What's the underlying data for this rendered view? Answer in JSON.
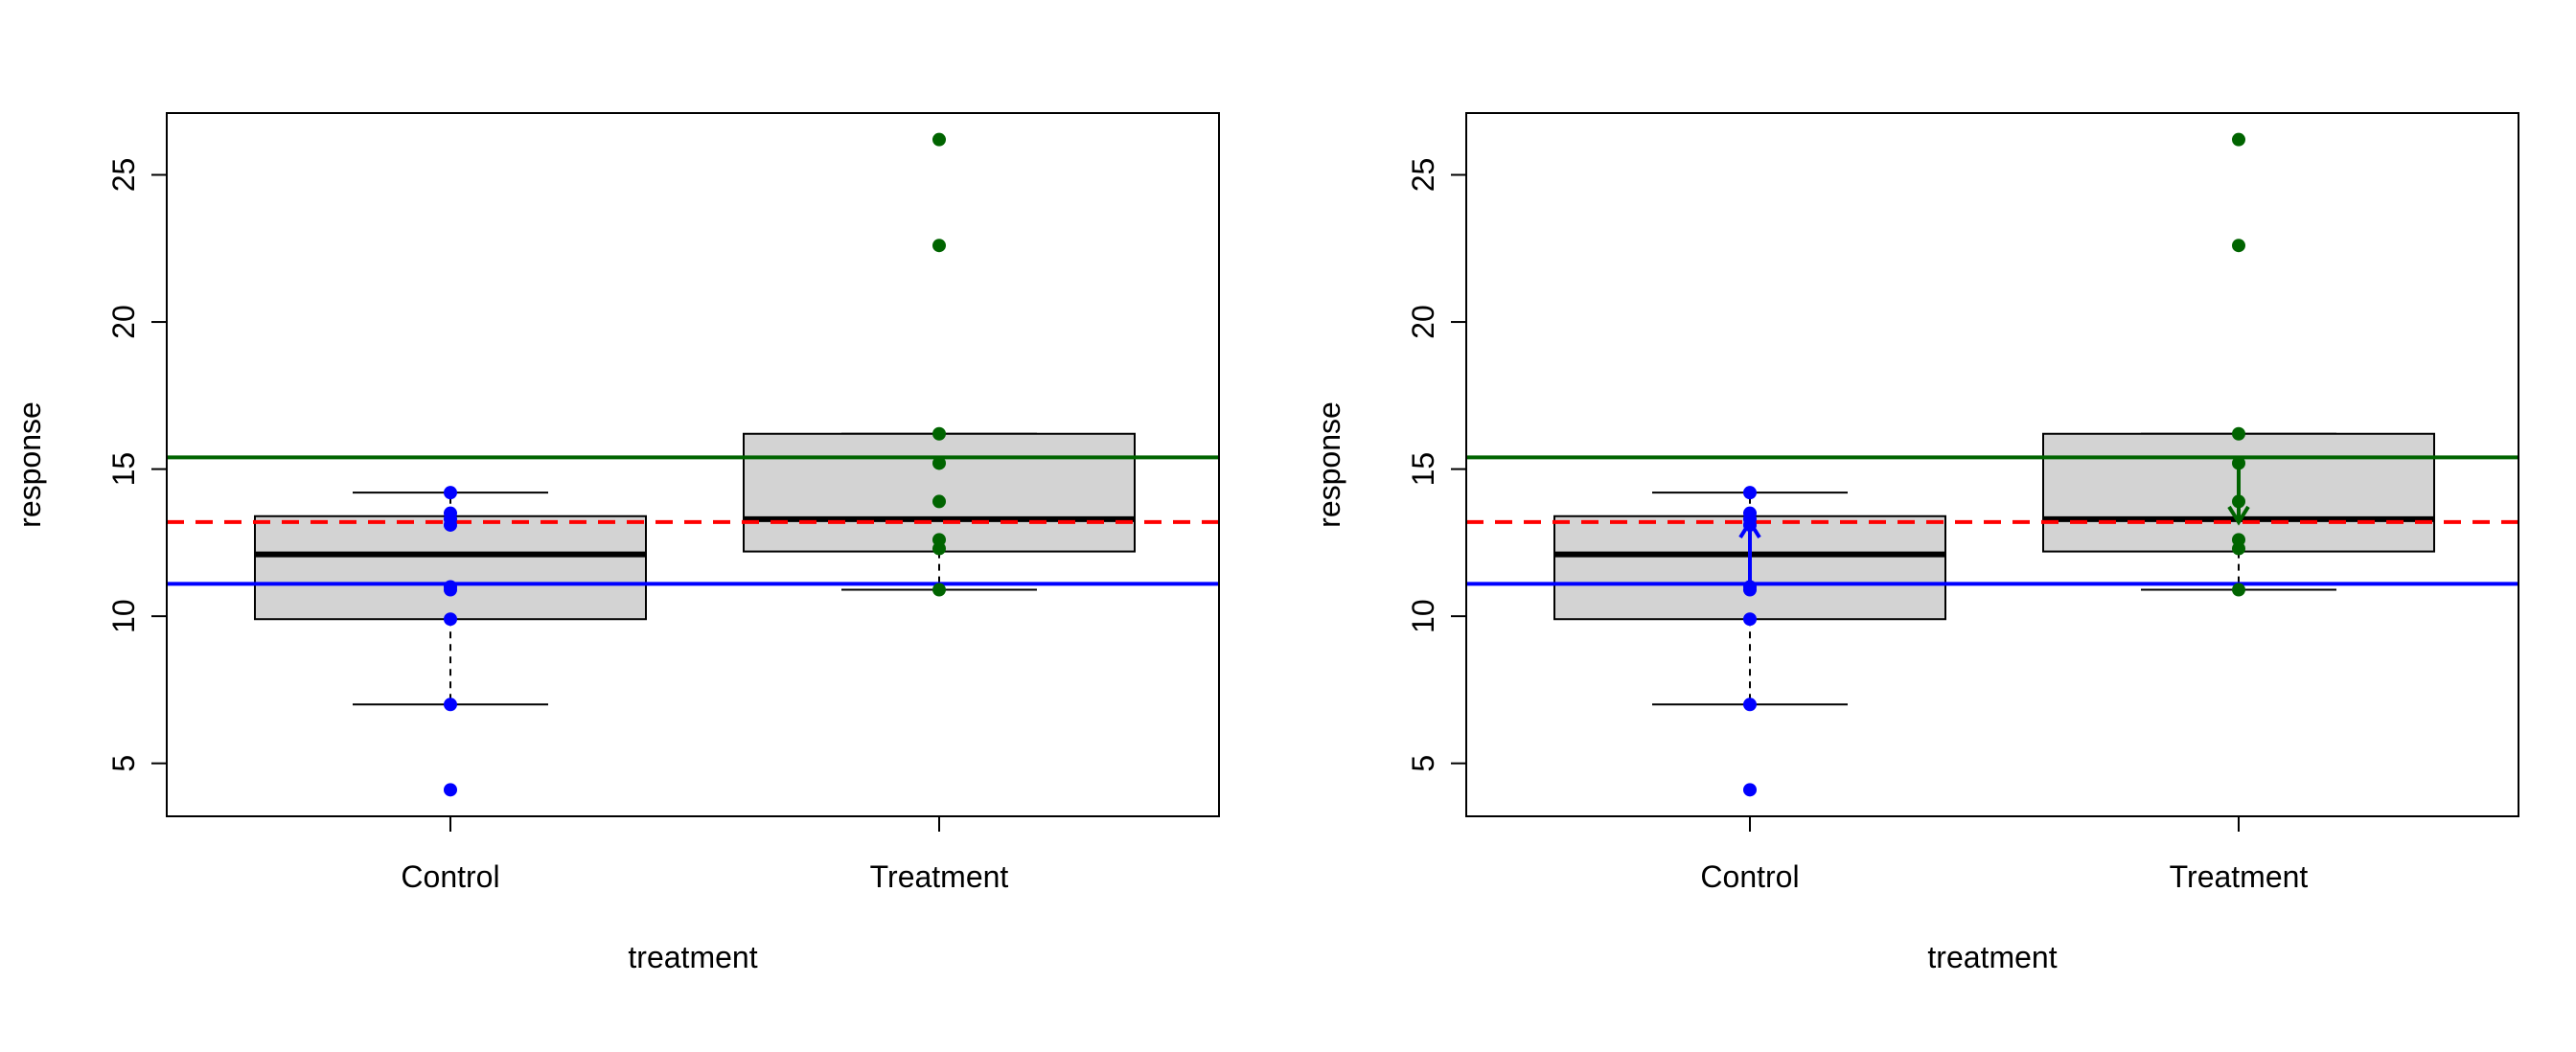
{
  "colors": {
    "control": "#0000ff",
    "treatment": "#006400",
    "grand_mean": "#ff0000",
    "box_fill": "#d3d3d3",
    "control_mean_line": "#0000ff",
    "treatment_mean_line": "#006400"
  },
  "chart_data": [
    {
      "type": "box",
      "title": "",
      "xlabel": "treatment",
      "ylabel": "response",
      "ylim": [
        3.2,
        27.1
      ],
      "yticks": [
        5,
        10,
        15,
        20,
        25
      ],
      "categories": [
        "Control",
        "Treatment"
      ],
      "boxes": [
        {
          "name": "Control",
          "q1": 9.9,
          "median": 12.1,
          "q3": 13.4,
          "whisker_low": 7.0,
          "whisker_high": 14.2
        },
        {
          "name": "Treatment",
          "q1": 12.2,
          "median": 13.3,
          "q3": 16.2,
          "whisker_low": 10.9,
          "whisker_high": 16.2
        }
      ],
      "points": {
        "Control": [
          4.1,
          7.0,
          9.9,
          10.9,
          11.0,
          13.1,
          13.3,
          13.5,
          14.2
        ],
        "Treatment": [
          10.9,
          12.3,
          12.6,
          13.9,
          15.2,
          16.2,
          22.6,
          26.2
        ]
      },
      "hlines": [
        {
          "name": "Treatment mean",
          "y": 15.4,
          "style": "solid",
          "color": "#006400"
        },
        {
          "name": "Grand mean",
          "y": 13.2,
          "style": "dashed",
          "color": "#ff0000"
        },
        {
          "name": "Control mean",
          "y": 11.1,
          "style": "solid",
          "color": "#0000ff"
        }
      ],
      "arrows": [],
      "grid": false,
      "legend": "none"
    },
    {
      "type": "box",
      "title": "",
      "xlabel": "treatment",
      "ylabel": "response",
      "ylim": [
        3.2,
        27.1
      ],
      "yticks": [
        5,
        10,
        15,
        20,
        25
      ],
      "categories": [
        "Control",
        "Treatment"
      ],
      "boxes": [
        {
          "name": "Control",
          "q1": 9.9,
          "median": 12.1,
          "q3": 13.4,
          "whisker_low": 7.0,
          "whisker_high": 14.2
        },
        {
          "name": "Treatment",
          "q1": 12.2,
          "median": 13.3,
          "q3": 16.2,
          "whisker_low": 10.9,
          "whisker_high": 16.2
        }
      ],
      "points": {
        "Control": [
          4.1,
          7.0,
          9.9,
          10.9,
          11.0,
          13.1,
          13.3,
          13.5,
          14.2
        ],
        "Treatment": [
          10.9,
          12.3,
          12.6,
          13.9,
          15.2,
          16.2,
          22.6,
          26.2
        ]
      },
      "hlines": [
        {
          "name": "Treatment mean",
          "y": 15.4,
          "style": "solid",
          "color": "#006400"
        },
        {
          "name": "Grand mean",
          "y": 13.2,
          "style": "dashed",
          "color": "#ff0000"
        },
        {
          "name": "Control mean",
          "y": 11.1,
          "style": "solid",
          "color": "#0000ff"
        }
      ],
      "arrows": [
        {
          "category": "Control",
          "from": 11.1,
          "to": 13.2,
          "color": "#0000ff"
        },
        {
          "category": "Treatment",
          "from": 15.4,
          "to": 13.2,
          "color": "#006400"
        }
      ],
      "grid": false,
      "legend": "none"
    }
  ]
}
